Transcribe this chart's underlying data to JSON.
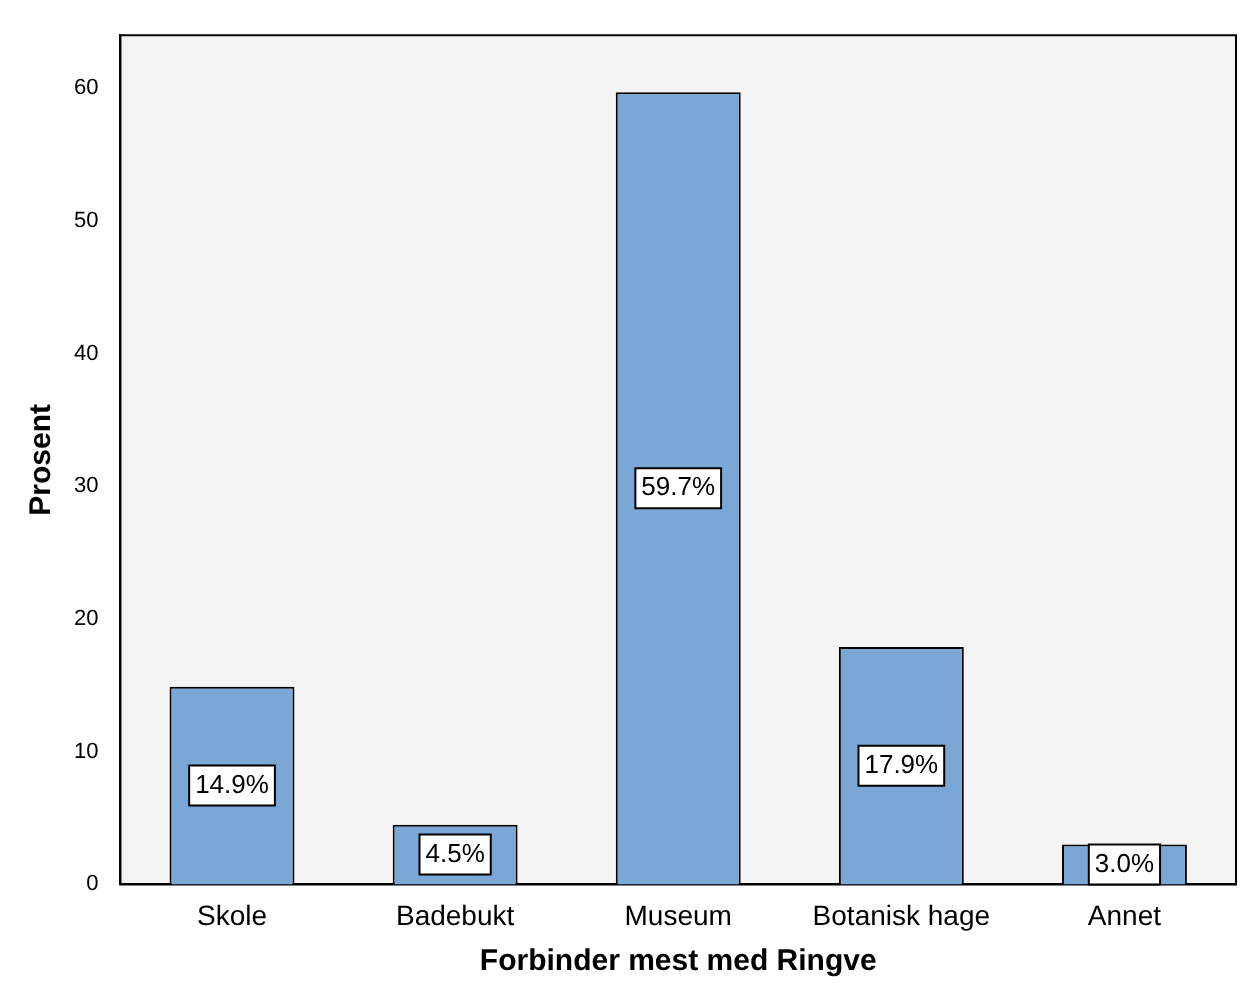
{
  "chart_data": {
    "type": "bar",
    "xlabel": "Forbinder mest med Ringve",
    "ylabel": "Prosent",
    "categories": [
      "Skole",
      "Badebukt",
      "Museum",
      "Botanisk hage",
      "Annet"
    ],
    "values": [
      14.9,
      4.5,
      59.7,
      17.9,
      3.0
    ],
    "value_labels": [
      "14.9%",
      "4.5%",
      "59.7%",
      "17.9%",
      "3.0%"
    ],
    "color": "#7ba7d6",
    "ylim": [
      0,
      64
    ],
    "yticks": [
      0,
      10,
      20,
      30,
      40,
      50,
      60
    ],
    "grid": false,
    "legend": false
  }
}
